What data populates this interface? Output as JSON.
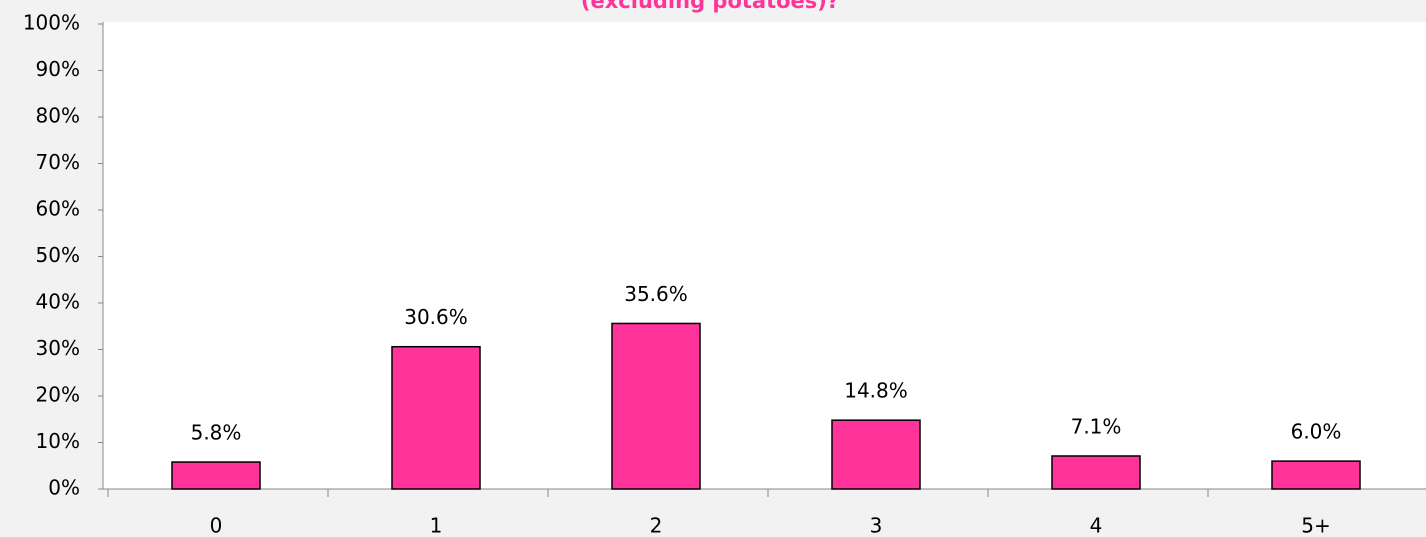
{
  "chart_data": {
    "type": "bar",
    "title": "(excluding potatoes)?",
    "categories": [
      "0",
      "1",
      "2",
      "3",
      "4",
      "5+"
    ],
    "values": [
      5.8,
      30.6,
      35.6,
      14.8,
      7.1,
      6.0
    ],
    "value_labels": [
      "5.8%",
      "30.6%",
      "35.6%",
      "14.8%",
      "7.1%",
      "6.0%"
    ],
    "color": "#ff3399",
    "ylim": [
      0,
      100
    ],
    "yticks": [
      {
        "value": 0,
        "label": "0%"
      },
      {
        "value": 10,
        "label": "10%"
      },
      {
        "value": 20,
        "label": "20%"
      },
      {
        "value": 30,
        "label": "30%"
      },
      {
        "value": 40,
        "label": "40%"
      },
      {
        "value": 50,
        "label": "50%"
      },
      {
        "value": 60,
        "label": "60%"
      },
      {
        "value": 70,
        "label": "70%"
      },
      {
        "value": 80,
        "label": "80%"
      },
      {
        "value": 90,
        "label": "90%"
      },
      {
        "value": 100,
        "label": "100%"
      }
    ],
    "grid": false
  }
}
